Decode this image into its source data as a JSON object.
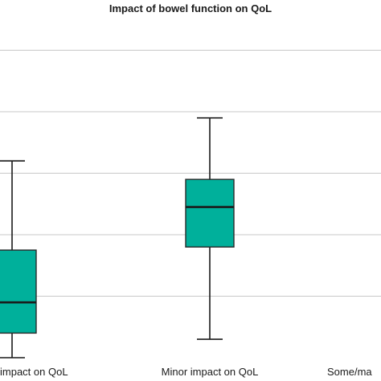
{
  "chart_data": {
    "type": "boxplot",
    "title": "Impact of bowel function on QoL",
    "xlabel": "",
    "ylabel": "",
    "categories": [
      "No impact on QoL",
      "Minor impact on QoL",
      "Some/major impact on QoL"
    ],
    "tick_labels_visible": [
      "impact on QoL",
      "Minor impact on QoL",
      "Some/ma"
    ],
    "ylim": [
      0,
      5.2
    ],
    "gridlines_at": [
      1,
      2,
      3,
      4,
      5
    ],
    "grid": true,
    "box_color": "#00b09b",
    "boxes": [
      {
        "category": "No impact on QoL",
        "whisker_low": 0,
        "q1": 0.4,
        "median": 0.9,
        "q3": 1.75,
        "whisker_high": 3.2
      },
      {
        "category": "Minor impact on QoL",
        "whisker_low": 0.3,
        "q1": 1.8,
        "median": 2.45,
        "q3": 2.9,
        "whisker_high": 3.9
      }
    ]
  }
}
